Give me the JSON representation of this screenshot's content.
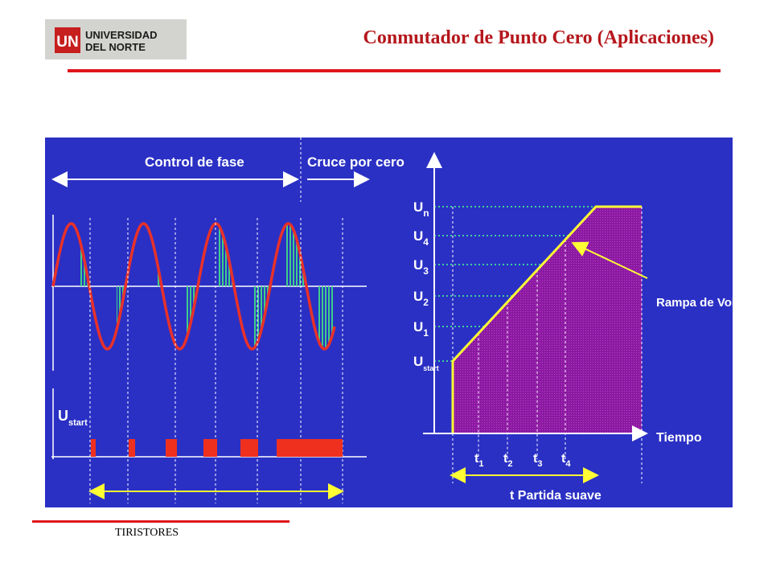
{
  "logo": {
    "initials": "UN",
    "line1": "UNIVERSIDAD",
    "line2": "DEL NORTE"
  },
  "slide": {
    "title": "Conmutador de Punto Cero (Aplicaciones)"
  },
  "diagram": {
    "phase_control_label": "Control de fase",
    "zero_cross_label": "Cruce por cero",
    "ustart_pulses_label": {
      "main": "U",
      "sub": "start"
    },
    "ramp": {
      "levels": [
        {
          "main": "U",
          "sub": "n"
        },
        {
          "main": "U",
          "sub": "4"
        },
        {
          "main": "U",
          "sub": "3"
        },
        {
          "main": "U",
          "sub": "2"
        },
        {
          "main": "U",
          "sub": "1"
        },
        {
          "main": "U",
          "sub": "start"
        }
      ],
      "time_marks": [
        {
          "main": "t",
          "sub": "1"
        },
        {
          "main": "t",
          "sub": "2"
        },
        {
          "main": "t",
          "sub": "3"
        },
        {
          "main": "t",
          "sub": "4"
        }
      ],
      "ramp_label": "Rampa de Voltaje",
      "time_axis_label": "Tiempo",
      "soft_start_label": "t Partida suave"
    }
  },
  "colors": {
    "slide_accent": "#e0161b",
    "title": "#b5171c",
    "diagram_bg": "#2a30c4",
    "sine": "#e8312a",
    "hatch": "#3ecf8a",
    "pulse": "#f0301e",
    "ramp": "#ffff33",
    "ramp_fill": "#8a1aa0",
    "dotted_level": "#3ecf9a"
  },
  "footer": {
    "text": "TIRISTORES"
  }
}
